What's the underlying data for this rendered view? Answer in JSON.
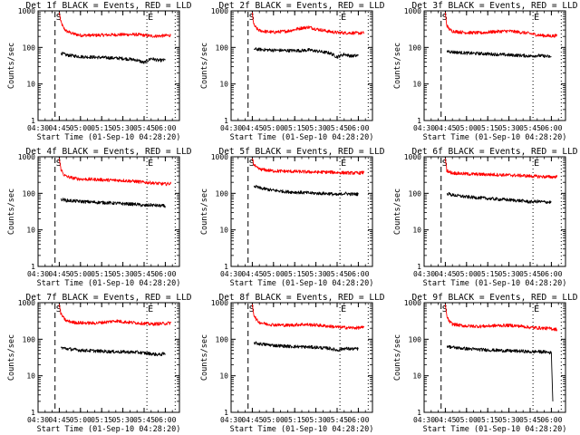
{
  "chart_data": [
    {
      "type": "line",
      "title": "Det 1f BLACK = Events, RED = LLD",
      "xlabel": "Start Time (01-Sep-10 04:28:20)",
      "ylabel": "Counts/sec",
      "yscale": "log",
      "ylim": [
        1,
        1000
      ],
      "xlim": [
        "04:30",
        "06:10"
      ],
      "x_ticks": [
        "04:30",
        "04:45",
        "05:00",
        "05:15",
        "05:30",
        "05:45",
        "06:00"
      ],
      "y_ticks": [
        "1",
        "10",
        "100",
        "1000"
      ],
      "markers": [
        {
          "label": "S",
          "time": "04:42",
          "style": "dashed"
        },
        {
          "label": "E",
          "time": "05:47",
          "style": "dotted"
        },
        {
          "time": "06:07",
          "style": "dotted"
        }
      ],
      "series": [
        {
          "color": "#ff0000",
          "x": [
            "04:45",
            "04:46",
            "04:48",
            "04:50",
            "04:55",
            "05:00",
            "05:10",
            "05:20",
            "05:30",
            "05:40",
            "05:45",
            "05:50",
            "05:55",
            "06:00",
            "06:04"
          ],
          "values": [
            900,
            520,
            340,
            280,
            235,
            215,
            215,
            220,
            225,
            225,
            215,
            205,
            205,
            210,
            215
          ]
        },
        {
          "color": "#000000",
          "x": [
            "04:46",
            "04:50",
            "05:00",
            "05:10",
            "05:20",
            "05:30",
            "05:40",
            "05:45",
            "05:50",
            "05:55",
            "06:00"
          ],
          "values": [
            70,
            62,
            56,
            54,
            52,
            50,
            45,
            38,
            50,
            44,
            45
          ]
        }
      ]
    },
    {
      "type": "line",
      "title": "Det 2f BLACK = Events, RED = LLD",
      "xlabel": "Start Time (01-Sep-10 04:28:20)",
      "ylabel": "Counts/sec",
      "yscale": "log",
      "ylim": [
        1,
        1000
      ],
      "xlim": [
        "04:30",
        "06:10"
      ],
      "x_ticks": [
        "04:30",
        "04:45",
        "05:00",
        "05:15",
        "05:30",
        "05:45",
        "06:00"
      ],
      "y_ticks": [
        "1",
        "10",
        "100",
        "1000"
      ],
      "markers": [
        {
          "label": "S",
          "time": "04:42",
          "style": "dashed"
        },
        {
          "label": "E",
          "time": "05:47",
          "style": "dotted"
        },
        {
          "time": "06:07",
          "style": "dotted"
        }
      ],
      "series": [
        {
          "color": "#ff0000",
          "x": [
            "04:45",
            "04:46",
            "04:48",
            "04:50",
            "04:55",
            "05:00",
            "05:10",
            "05:20",
            "05:25",
            "05:30",
            "05:40",
            "05:45",
            "05:50",
            "05:55",
            "06:00",
            "06:04"
          ],
          "values": [
            900,
            420,
            330,
            290,
            270,
            260,
            280,
            340,
            360,
            320,
            270,
            255,
            250,
            250,
            245,
            250
          ]
        },
        {
          "color": "#000000",
          "x": [
            "04:46",
            "04:50",
            "05:00",
            "05:10",
            "05:20",
            "05:25",
            "05:30",
            "05:40",
            "05:45",
            "05:50",
            "05:55",
            "06:00"
          ],
          "values": [
            90,
            88,
            84,
            82,
            82,
            85,
            80,
            70,
            55,
            65,
            58,
            60
          ]
        }
      ]
    },
    {
      "type": "line",
      "title": "Det 3f BLACK = Events, RED = LLD",
      "xlabel": "Start Time (01-Sep-10 04:28:20)",
      "ylabel": "Counts/sec",
      "yscale": "log",
      "ylim": [
        1,
        1000
      ],
      "xlim": [
        "04:30",
        "06:10"
      ],
      "x_ticks": [
        "04:30",
        "04:45",
        "05:00",
        "05:15",
        "05:30",
        "05:45",
        "06:00"
      ],
      "y_ticks": [
        "1",
        "10",
        "100",
        "1000"
      ],
      "markers": [
        {
          "label": "S",
          "time": "04:42",
          "style": "dashed"
        },
        {
          "label": "E",
          "time": "05:47",
          "style": "dotted"
        },
        {
          "time": "06:07",
          "style": "dotted"
        }
      ],
      "series": [
        {
          "color": "#ff0000",
          "x": [
            "04:45",
            "04:46",
            "04:48",
            "04:50",
            "04:55",
            "05:00",
            "05:10",
            "05:20",
            "05:30",
            "05:40",
            "05:45",
            "05:50",
            "05:55",
            "06:00",
            "06:04"
          ],
          "values": [
            900,
            400,
            310,
            280,
            265,
            255,
            250,
            270,
            280,
            255,
            240,
            220,
            210,
            205,
            210
          ]
        },
        {
          "color": "#000000",
          "x": [
            "04:46",
            "04:50",
            "05:00",
            "05:10",
            "05:20",
            "05:30",
            "05:40",
            "05:45",
            "05:50",
            "05:55",
            "06:00"
          ],
          "values": [
            80,
            75,
            70,
            68,
            65,
            62,
            60,
            58,
            60,
            58,
            55
          ]
        }
      ]
    },
    {
      "type": "line",
      "title": "Det 4f BLACK = Events, RED = LLD",
      "xlabel": "Start Time (01-Sep-10 04:28:20)",
      "ylabel": "Counts/sec",
      "yscale": "log",
      "ylim": [
        1,
        1000
      ],
      "xlim": [
        "04:30",
        "06:10"
      ],
      "x_ticks": [
        "04:30",
        "04:45",
        "05:00",
        "05:15",
        "05:30",
        "05:45",
        "06:00"
      ],
      "y_ticks": [
        "1",
        "10",
        "100",
        "1000"
      ],
      "markers": [
        {
          "label": "S",
          "time": "04:42",
          "style": "dashed"
        },
        {
          "label": "E",
          "time": "05:47",
          "style": "dotted"
        },
        {
          "time": "06:07",
          "style": "dotted"
        }
      ],
      "series": [
        {
          "color": "#ff0000",
          "x": [
            "04:45",
            "04:46",
            "04:48",
            "04:50",
            "04:55",
            "05:00",
            "05:10",
            "05:20",
            "05:30",
            "05:40",
            "05:45",
            "05:50",
            "05:55",
            "06:00",
            "06:04"
          ],
          "values": [
            900,
            480,
            330,
            290,
            260,
            245,
            240,
            230,
            225,
            210,
            200,
            195,
            185,
            180,
            185
          ]
        },
        {
          "color": "#000000",
          "x": [
            "04:46",
            "04:50",
            "05:00",
            "05:10",
            "05:20",
            "05:30",
            "05:40",
            "05:45",
            "05:50",
            "05:55",
            "06:00"
          ],
          "values": [
            70,
            64,
            60,
            57,
            55,
            52,
            50,
            46,
            48,
            46,
            45
          ]
        }
      ]
    },
    {
      "type": "line",
      "title": "Det 5f BLACK = Events, RED = LLD",
      "xlabel": "Start Time (01-Sep-10 04:28:20)",
      "ylabel": "Counts/sec",
      "yscale": "log",
      "ylim": [
        1,
        1000
      ],
      "xlim": [
        "04:30",
        "06:10"
      ],
      "x_ticks": [
        "04:30",
        "04:45",
        "05:00",
        "05:15",
        "05:30",
        "05:45",
        "06:00"
      ],
      "y_ticks": [
        "1",
        "10",
        "100",
        "1000"
      ],
      "markers": [
        {
          "label": "S",
          "time": "04:42",
          "style": "dashed"
        },
        {
          "label": "E",
          "time": "05:47",
          "style": "dotted"
        },
        {
          "time": "06:07",
          "style": "dotted"
        }
      ],
      "series": [
        {
          "color": "#ff0000",
          "x": [
            "04:45",
            "04:46",
            "04:48",
            "04:50",
            "04:55",
            "05:00",
            "05:10",
            "05:20",
            "05:30",
            "05:40",
            "05:45",
            "05:50",
            "05:55",
            "06:00",
            "06:04"
          ],
          "values": [
            900,
            620,
            500,
            460,
            430,
            410,
            400,
            390,
            380,
            380,
            370,
            365,
            360,
            360,
            370
          ]
        },
        {
          "color": "#000000",
          "x": [
            "04:46",
            "04:50",
            "05:00",
            "05:10",
            "05:20",
            "05:30",
            "05:40",
            "05:45",
            "05:50",
            "05:55",
            "06:00"
          ],
          "values": [
            160,
            140,
            120,
            110,
            105,
            100,
            98,
            90,
            100,
            95,
            95
          ]
        }
      ]
    },
    {
      "type": "line",
      "title": "Det 6f BLACK = Events, RED = LLD",
      "xlabel": "Start Time (01-Sep-10 04:28:20)",
      "ylabel": "Counts/sec",
      "yscale": "log",
      "ylim": [
        1,
        1000
      ],
      "xlim": [
        "04:30",
        "06:10"
      ],
      "x_ticks": [
        "04:30",
        "04:45",
        "05:00",
        "05:15",
        "05:30",
        "05:45",
        "06:00"
      ],
      "y_ticks": [
        "1",
        "10",
        "100",
        "1000"
      ],
      "markers": [
        {
          "label": "S",
          "time": "04:42",
          "style": "dashed"
        },
        {
          "label": "E",
          "time": "05:47",
          "style": "dotted"
        },
        {
          "time": "06:07",
          "style": "dotted"
        }
      ],
      "series": [
        {
          "color": "#ff0000",
          "x": [
            "04:45",
            "04:46",
            "04:48",
            "04:50",
            "04:55",
            "05:00",
            "05:10",
            "05:20",
            "05:30",
            "05:40",
            "05:45",
            "05:50",
            "05:55",
            "06:00",
            "06:04"
          ],
          "values": [
            900,
            430,
            380,
            360,
            350,
            340,
            330,
            325,
            315,
            305,
            295,
            290,
            285,
            280,
            285
          ]
        },
        {
          "color": "#000000",
          "x": [
            "04:46",
            "04:50",
            "05:00",
            "05:10",
            "05:20",
            "05:30",
            "05:40",
            "05:45",
            "05:50",
            "05:55",
            "06:00"
          ],
          "values": [
            100,
            90,
            80,
            75,
            70,
            66,
            62,
            58,
            60,
            58,
            57
          ]
        }
      ]
    },
    {
      "type": "line",
      "title": "Det 7f BLACK = Events, RED = LLD",
      "xlabel": "Start Time (01-Sep-10 04:28:20)",
      "ylabel": "Counts/sec",
      "yscale": "log",
      "ylim": [
        1,
        1000
      ],
      "xlim": [
        "04:30",
        "06:10"
      ],
      "x_ticks": [
        "04:30",
        "04:45",
        "05:00",
        "05:15",
        "05:30",
        "05:45",
        "06:00"
      ],
      "y_ticks": [
        "1",
        "10",
        "100",
        "1000"
      ],
      "markers": [
        {
          "label": "S",
          "time": "04:42",
          "style": "dashed"
        },
        {
          "label": "E",
          "time": "05:47",
          "style": "dotted"
        },
        {
          "time": "06:07",
          "style": "dotted"
        }
      ],
      "series": [
        {
          "color": "#ff0000",
          "x": [
            "04:45",
            "04:46",
            "04:48",
            "04:50",
            "04:55",
            "05:00",
            "05:10",
            "05:20",
            "05:25",
            "05:30",
            "05:40",
            "05:45",
            "05:50",
            "05:55",
            "06:00",
            "06:04"
          ],
          "values": [
            900,
            520,
            380,
            320,
            290,
            280,
            275,
            300,
            320,
            300,
            280,
            270,
            260,
            265,
            270,
            280
          ]
        },
        {
          "color": "#000000",
          "x": [
            "04:46",
            "04:50",
            "05:00",
            "05:10",
            "05:20",
            "05:30",
            "05:40",
            "05:45",
            "05:50",
            "05:55",
            "06:00"
          ],
          "values": [
            60,
            55,
            50,
            48,
            46,
            45,
            44,
            42,
            40,
            38,
            40
          ]
        }
      ]
    },
    {
      "type": "line",
      "title": "Det 8f BLACK = Events, RED = LLD",
      "xlabel": "Start Time (01-Sep-10 04:28:20)",
      "ylabel": "Counts/sec",
      "yscale": "log",
      "ylim": [
        1,
        1000
      ],
      "xlim": [
        "04:30",
        "06:10"
      ],
      "x_ticks": [
        "04:30",
        "04:45",
        "05:00",
        "05:15",
        "05:30",
        "05:45",
        "06:00"
      ],
      "y_ticks": [
        "1",
        "10",
        "100",
        "1000"
      ],
      "markers": [
        {
          "label": "S",
          "time": "04:42",
          "style": "dashed"
        },
        {
          "label": "E",
          "time": "05:47",
          "style": "dotted"
        },
        {
          "time": "06:07",
          "style": "dotted"
        }
      ],
      "series": [
        {
          "color": "#ff0000",
          "x": [
            "04:45",
            "04:46",
            "04:48",
            "04:50",
            "04:55",
            "05:00",
            "05:10",
            "05:20",
            "05:30",
            "05:40",
            "05:45",
            "05:50",
            "05:55",
            "06:00",
            "06:04"
          ],
          "values": [
            900,
            480,
            340,
            290,
            260,
            250,
            240,
            255,
            245,
            225,
            215,
            210,
            205,
            205,
            210
          ]
        },
        {
          "color": "#000000",
          "x": [
            "04:46",
            "04:50",
            "05:00",
            "05:10",
            "05:20",
            "05:30",
            "05:40",
            "05:45",
            "05:50",
            "05:55",
            "06:00"
          ],
          "values": [
            80,
            75,
            68,
            64,
            62,
            60,
            56,
            50,
            56,
            54,
            55
          ]
        }
      ]
    },
    {
      "type": "line",
      "title": "Det 9f BLACK = Events, RED = LLD",
      "xlabel": "Start Time (01-Sep-10 04:28:20)",
      "ylabel": "Counts/sec",
      "yscale": "log",
      "ylim": [
        1,
        1000
      ],
      "xlim": [
        "04:30",
        "06:10"
      ],
      "x_ticks": [
        "04:30",
        "04:45",
        "05:00",
        "05:15",
        "05:30",
        "05:45",
        "06:00"
      ],
      "y_ticks": [
        "1",
        "10",
        "100",
        "1000"
      ],
      "markers": [
        {
          "label": "S",
          "time": "04:42",
          "style": "dashed"
        },
        {
          "label": "E",
          "time": "05:47",
          "style": "dotted"
        },
        {
          "time": "06:07",
          "style": "dotted"
        }
      ],
      "series": [
        {
          "color": "#ff0000",
          "x": [
            "04:45",
            "04:46",
            "04:48",
            "04:50",
            "04:55",
            "05:00",
            "05:10",
            "05:20",
            "05:30",
            "05:40",
            "05:45",
            "05:50",
            "05:55",
            "06:00",
            "06:02",
            "06:04"
          ],
          "values": [
            900,
            420,
            300,
            260,
            240,
            230,
            225,
            235,
            240,
            225,
            210,
            205,
            200,
            195,
            190,
            185
          ]
        },
        {
          "color": "#000000",
          "x": [
            "04:46",
            "04:50",
            "05:00",
            "05:10",
            "05:20",
            "05:30",
            "05:40",
            "05:45",
            "05:50",
            "05:55",
            "05:58",
            "06:00",
            "06:01"
          ],
          "values": [
            65,
            60,
            55,
            52,
            50,
            48,
            47,
            45,
            46,
            45,
            44,
            42,
            2
          ]
        }
      ]
    }
  ]
}
